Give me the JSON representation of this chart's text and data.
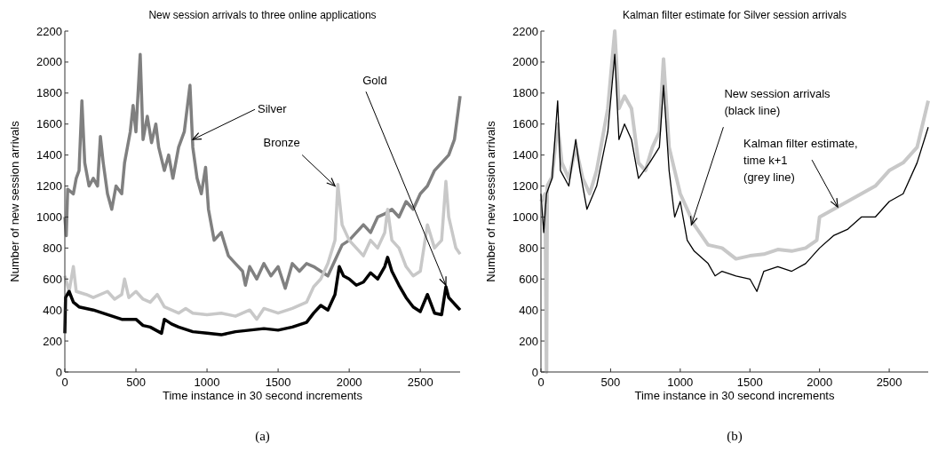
{
  "chart_data": [
    {
      "type": "line",
      "title": "New session arrivals to three online applications",
      "xlabel": "Time instance in 30 second increments",
      "ylabel": "Number of new session arrivals",
      "xlim": [
        0,
        2780
      ],
      "ylim": [
        0,
        2200
      ],
      "xticks": [
        0,
        500,
        1000,
        1500,
        2000,
        2500
      ],
      "yticks": [
        0,
        200,
        400,
        600,
        800,
        1000,
        1200,
        1400,
        1600,
        1800,
        2000,
        2200
      ],
      "grid": false,
      "series": [
        {
          "color": "#808080",
          "x": [
            0,
            10,
            20,
            60,
            80,
            100,
            120,
            140,
            170,
            200,
            230,
            250,
            270,
            300,
            330,
            360,
            400,
            420,
            460,
            480,
            500,
            530,
            550,
            580,
            610,
            640,
            660,
            700,
            730,
            760,
            800,
            840,
            880,
            900,
            930,
            960,
            990,
            1010,
            1050,
            1100,
            1150,
            1200,
            1250,
            1270,
            1300,
            1350,
            1400,
            1450,
            1500,
            1550,
            1600,
            1650,
            1700,
            1750,
            1800,
            1850,
            1900,
            1950,
            2000,
            2050,
            2100,
            2150,
            2200,
            2250,
            2300,
            2350,
            2400,
            2450,
            2500,
            2550,
            2600,
            2650,
            2700,
            2740,
            2780
          ],
          "values": [
            1000,
            880,
            1180,
            1150,
            1250,
            1300,
            1750,
            1350,
            1200,
            1250,
            1200,
            1520,
            1350,
            1150,
            1050,
            1200,
            1150,
            1350,
            1550,
            1720,
            1550,
            2050,
            1500,
            1650,
            1480,
            1600,
            1450,
            1300,
            1400,
            1250,
            1450,
            1550,
            1850,
            1450,
            1250,
            1150,
            1320,
            1050,
            850,
            900,
            750,
            700,
            650,
            560,
            680,
            600,
            700,
            620,
            680,
            540,
            700,
            650,
            700,
            680,
            650,
            620,
            720,
            820,
            850,
            900,
            950,
            900,
            1000,
            1020,
            1050,
            1000,
            1100,
            1050,
            1150,
            1200,
            1300,
            1350,
            1400,
            1500,
            1780
          ]
        },
        {
          "color": "#c8c8c8",
          "x": [
            0,
            30,
            60,
            80,
            150,
            200,
            300,
            350,
            400,
            420,
            450,
            500,
            550,
            600,
            650,
            700,
            750,
            800,
            850,
            900,
            1000,
            1100,
            1200,
            1300,
            1350,
            1400,
            1500,
            1600,
            1700,
            1750,
            1800,
            1850,
            1900,
            1920,
            1950,
            2000,
            2050,
            2100,
            2150,
            2200,
            2250,
            2270,
            2300,
            2350,
            2400,
            2450,
            2500,
            2550,
            2600,
            2650,
            2680,
            2700,
            2750,
            2780
          ],
          "values": [
            620,
            520,
            680,
            520,
            500,
            480,
            520,
            470,
            500,
            600,
            480,
            520,
            470,
            450,
            500,
            420,
            400,
            380,
            410,
            380,
            370,
            380,
            360,
            400,
            340,
            410,
            380,
            410,
            450,
            550,
            600,
            700,
            850,
            1210,
            950,
            850,
            800,
            750,
            850,
            800,
            900,
            1050,
            850,
            800,
            680,
            620,
            650,
            950,
            800,
            850,
            1230,
            1000,
            800,
            760
          ]
        },
        {
          "color": "#000000",
          "x": [
            0,
            5,
            30,
            60,
            100,
            200,
            300,
            400,
            500,
            550,
            600,
            680,
            700,
            750,
            800,
            900,
            1000,
            1100,
            1200,
            1300,
            1400,
            1500,
            1600,
            1700,
            1750,
            1800,
            1850,
            1900,
            1930,
            1960,
            2000,
            2050,
            2100,
            2150,
            2200,
            2250,
            2270,
            2300,
            2350,
            2400,
            2450,
            2500,
            2550,
            2600,
            2650,
            2680,
            2700,
            2750,
            2780
          ],
          "values": [
            250,
            480,
            520,
            450,
            420,
            400,
            370,
            340,
            340,
            300,
            290,
            250,
            340,
            310,
            290,
            260,
            250,
            240,
            260,
            270,
            280,
            270,
            290,
            320,
            380,
            430,
            400,
            500,
            680,
            620,
            600,
            560,
            580,
            640,
            600,
            680,
            740,
            650,
            560,
            480,
            420,
            390,
            500,
            380,
            370,
            550,
            480,
            430,
            400
          ]
        }
      ],
      "annotations": [
        {
          "text": "Silver",
          "x": 900,
          "y": 1500
        },
        {
          "text": "Bronze",
          "x": 1900,
          "y": 1200
        },
        {
          "text": "Gold",
          "x": 2680,
          "y": 560
        },
        "(a)"
      ]
    },
    {
      "type": "line",
      "title": "Kalman filter estimate for Silver session arrivals",
      "xlabel": "Time instance in 30 second increments",
      "ylabel": "Number of new session arrivals",
      "xlim": [
        0,
        2780
      ],
      "ylim": [
        0,
        2200
      ],
      "xticks": [
        0,
        500,
        1000,
        1500,
        2000,
        2500
      ],
      "yticks": [
        0,
        200,
        400,
        600,
        800,
        1000,
        1200,
        1400,
        1600,
        1800,
        2000,
        2200
      ],
      "grid": false,
      "series": [
        {
          "color": "#c8c8c8",
          "x": [
            0,
            30,
            40,
            45,
            80,
            120,
            150,
            200,
            250,
            300,
            350,
            400,
            480,
            530,
            560,
            600,
            650,
            700,
            750,
            800,
            850,
            880,
            920,
            960,
            1000,
            1050,
            1100,
            1200,
            1300,
            1400,
            1500,
            1600,
            1700,
            1800,
            1900,
            1980,
            2000,
            2100,
            2200,
            2300,
            2400,
            2500,
            2600,
            2700,
            2780
          ],
          "values": [
            1100,
            1150,
            0,
            1200,
            1260,
            1600,
            1350,
            1250,
            1450,
            1250,
            1150,
            1300,
            1700,
            2200,
            1700,
            1780,
            1700,
            1350,
            1300,
            1450,
            1550,
            2020,
            1450,
            1300,
            1150,
            1050,
            950,
            820,
            800,
            730,
            750,
            760,
            790,
            780,
            800,
            850,
            1000,
            1050,
            1100,
            1150,
            1200,
            1300,
            1350,
            1450,
            1750
          ]
        },
        {
          "color": "#000000",
          "x": [
            0,
            20,
            40,
            80,
            120,
            140,
            200,
            250,
            280,
            330,
            400,
            480,
            530,
            560,
            600,
            650,
            700,
            780,
            850,
            880,
            920,
            960,
            1000,
            1050,
            1100,
            1200,
            1250,
            1300,
            1400,
            1500,
            1550,
            1600,
            1700,
            1800,
            1900,
            2000,
            2100,
            2200,
            2300,
            2400,
            2500,
            2600,
            2700,
            2780
          ],
          "values": [
            1150,
            900,
            1150,
            1250,
            1750,
            1300,
            1200,
            1500,
            1300,
            1050,
            1200,
            1550,
            2050,
            1500,
            1600,
            1500,
            1250,
            1350,
            1450,
            1850,
            1300,
            1000,
            1100,
            850,
            780,
            700,
            620,
            650,
            620,
            600,
            520,
            650,
            680,
            650,
            700,
            800,
            880,
            920,
            1000,
            1000,
            1100,
            1150,
            1350,
            1580
          ]
        }
      ],
      "annotations": [
        {
          "text": "New session arrivals\n(black line)",
          "x": 1080,
          "y": 950
        },
        {
          "text": "Kalman filter estimate,\ntime k+1\n(grey line)",
          "x": 2130,
          "y": 1065
        },
        "(b)"
      ]
    }
  ]
}
